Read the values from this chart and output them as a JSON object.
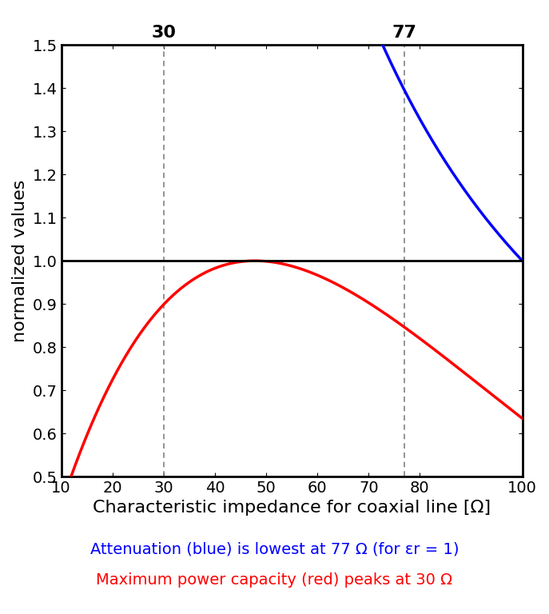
{
  "xlabel": "Characteristic impedance for coaxial line [Ω]",
  "ylabel": "normalized values",
  "xlim": [
    10,
    100
  ],
  "ylim": [
    0.5,
    1.5
  ],
  "xticks": [
    10,
    20,
    30,
    40,
    50,
    60,
    70,
    80,
    100
  ],
  "yticks": [
    0.5,
    0.6,
    0.7,
    0.8,
    0.9,
    1.0,
    1.1,
    1.2,
    1.3,
    1.4,
    1.5
  ],
  "vline_attenuation": 77,
  "vline_power": 30,
  "hline_y": 1.0,
  "blue_line_color": "#0000ff",
  "red_line_color": "#ff0000",
  "legend_blue": "Attenuation (blue) is lowest at 77 Ω (for εr = 1)",
  "legend_red": "Maximum power capacity (red) peaks at 30 Ω",
  "legend_blue_color": "#0000ff",
  "legend_red_color": "#ff0000",
  "legend_fontsize": 14,
  "axis_label_fontsize": 16,
  "tick_fontsize": 14,
  "vline_label_fontsize": 16,
  "background_color": "#ffffff"
}
